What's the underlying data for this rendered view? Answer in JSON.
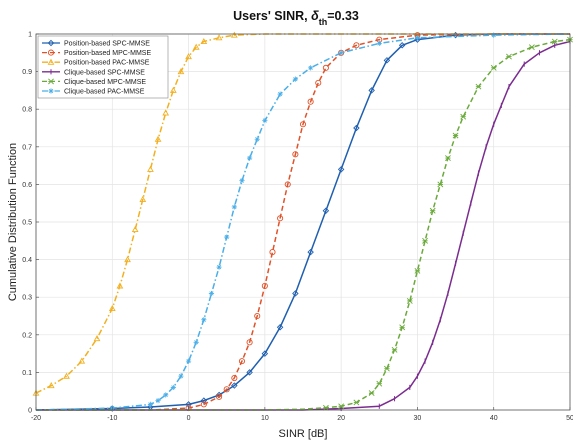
{
  "chart_data": {
    "type": "line",
    "title_main": "Users' SINR, ",
    "title_delta": "δ",
    "title_sub": "th",
    "title_tail": "=0.33",
    "xlabel": "SINR [dB]",
    "ylabel": "Cumulative Distribution Function",
    "xlim": [
      -20,
      50
    ],
    "ylim": [
      0,
      1
    ],
    "xticks": [
      -20,
      -10,
      0,
      10,
      20,
      30,
      40,
      50
    ],
    "yticks": [
      0,
      0.1,
      0.2,
      0.3,
      0.4,
      0.5,
      0.6,
      0.7,
      0.8,
      0.9,
      1
    ],
    "grid": true,
    "legend_position": "top-left",
    "series": [
      {
        "name": "Position-based SPC-MMSE",
        "color": "#1f5fb0",
        "dash": "solid",
        "marker": "diamond",
        "x": [
          -20,
          -10,
          -5,
          0,
          2,
          4,
          6,
          8,
          10,
          12,
          14,
          16,
          18,
          20,
          22,
          24,
          26,
          28,
          30,
          35,
          40,
          45,
          50
        ],
        "y": [
          0,
          0.004,
          0.008,
          0.015,
          0.025,
          0.04,
          0.065,
          0.1,
          0.15,
          0.22,
          0.31,
          0.42,
          0.53,
          0.64,
          0.75,
          0.85,
          0.93,
          0.97,
          0.985,
          0.997,
          1,
          1,
          1
        ]
      },
      {
        "name": "Position-based MPC-MMSE",
        "color": "#e0532a",
        "dash": "dashed",
        "marker": "circle",
        "x": [
          -20,
          -5,
          0,
          2,
          4,
          5,
          6,
          7,
          8,
          9,
          10,
          11,
          12,
          13,
          14,
          15,
          16,
          17,
          18,
          20,
          22,
          25,
          30,
          40,
          50
        ],
        "y": [
          0,
          0,
          0.005,
          0.015,
          0.035,
          0.055,
          0.085,
          0.13,
          0.18,
          0.25,
          0.33,
          0.42,
          0.51,
          0.6,
          0.68,
          0.76,
          0.82,
          0.87,
          0.91,
          0.95,
          0.97,
          0.985,
          0.997,
          1,
          1
        ]
      },
      {
        "name": "Position-based PAC-MMSE",
        "color": "#f2b020",
        "dash": "dashdot",
        "marker": "triangle",
        "x": [
          -20,
          -18,
          -16,
          -14,
          -12,
          -10,
          -9,
          -8,
          -7,
          -6,
          -5,
          -4,
          -3,
          -2,
          -1,
          0,
          1,
          2,
          4,
          6,
          10,
          20,
          30,
          50
        ],
        "y": [
          0.045,
          0.065,
          0.09,
          0.13,
          0.19,
          0.27,
          0.33,
          0.4,
          0.48,
          0.56,
          0.64,
          0.72,
          0.79,
          0.85,
          0.9,
          0.94,
          0.965,
          0.98,
          0.99,
          0.997,
          1,
          1,
          1,
          1
        ]
      },
      {
        "name": "Clique-based SPC-MMSE",
        "color": "#7b2c8f",
        "dash": "solid",
        "marker": "vline",
        "x": [
          -20,
          15,
          20,
          25,
          27,
          29,
          30,
          31,
          32,
          33,
          34,
          35,
          36,
          37,
          38,
          39,
          40,
          41,
          42,
          44,
          46,
          48,
          50
        ],
        "y": [
          0,
          0,
          0.004,
          0.01,
          0.03,
          0.06,
          0.09,
          0.13,
          0.18,
          0.24,
          0.31,
          0.39,
          0.47,
          0.55,
          0.63,
          0.7,
          0.76,
          0.81,
          0.86,
          0.92,
          0.95,
          0.97,
          0.98
        ]
      },
      {
        "name": "Clique-based MPC-MMSE",
        "color": "#6aaa3a",
        "dash": "dashed",
        "marker": "star",
        "x": [
          -20,
          10,
          15,
          18,
          20,
          22,
          24,
          25,
          26,
          27,
          28,
          29,
          30,
          31,
          32,
          33,
          34,
          35,
          36,
          38,
          40,
          42,
          45,
          48,
          50
        ],
        "y": [
          0,
          0,
          0.002,
          0.006,
          0.01,
          0.02,
          0.045,
          0.07,
          0.11,
          0.16,
          0.22,
          0.29,
          0.37,
          0.45,
          0.53,
          0.6,
          0.67,
          0.73,
          0.78,
          0.86,
          0.91,
          0.94,
          0.965,
          0.98,
          0.985
        ]
      },
      {
        "name": "Clique-based PAC-MMSE",
        "color": "#4aaee8",
        "dash": "dashdot",
        "marker": "asterisk",
        "x": [
          -20,
          -10,
          -5,
          -4,
          -3,
          -2,
          -1,
          0,
          1,
          2,
          3,
          4,
          5,
          6,
          7,
          8,
          9,
          10,
          12,
          14,
          16,
          20,
          25,
          30,
          40,
          50
        ],
        "y": [
          0,
          0.005,
          0.015,
          0.025,
          0.04,
          0.06,
          0.09,
          0.13,
          0.18,
          0.24,
          0.31,
          0.38,
          0.46,
          0.54,
          0.61,
          0.67,
          0.72,
          0.77,
          0.84,
          0.88,
          0.91,
          0.95,
          0.975,
          0.99,
          0.997,
          1
        ]
      }
    ]
  }
}
